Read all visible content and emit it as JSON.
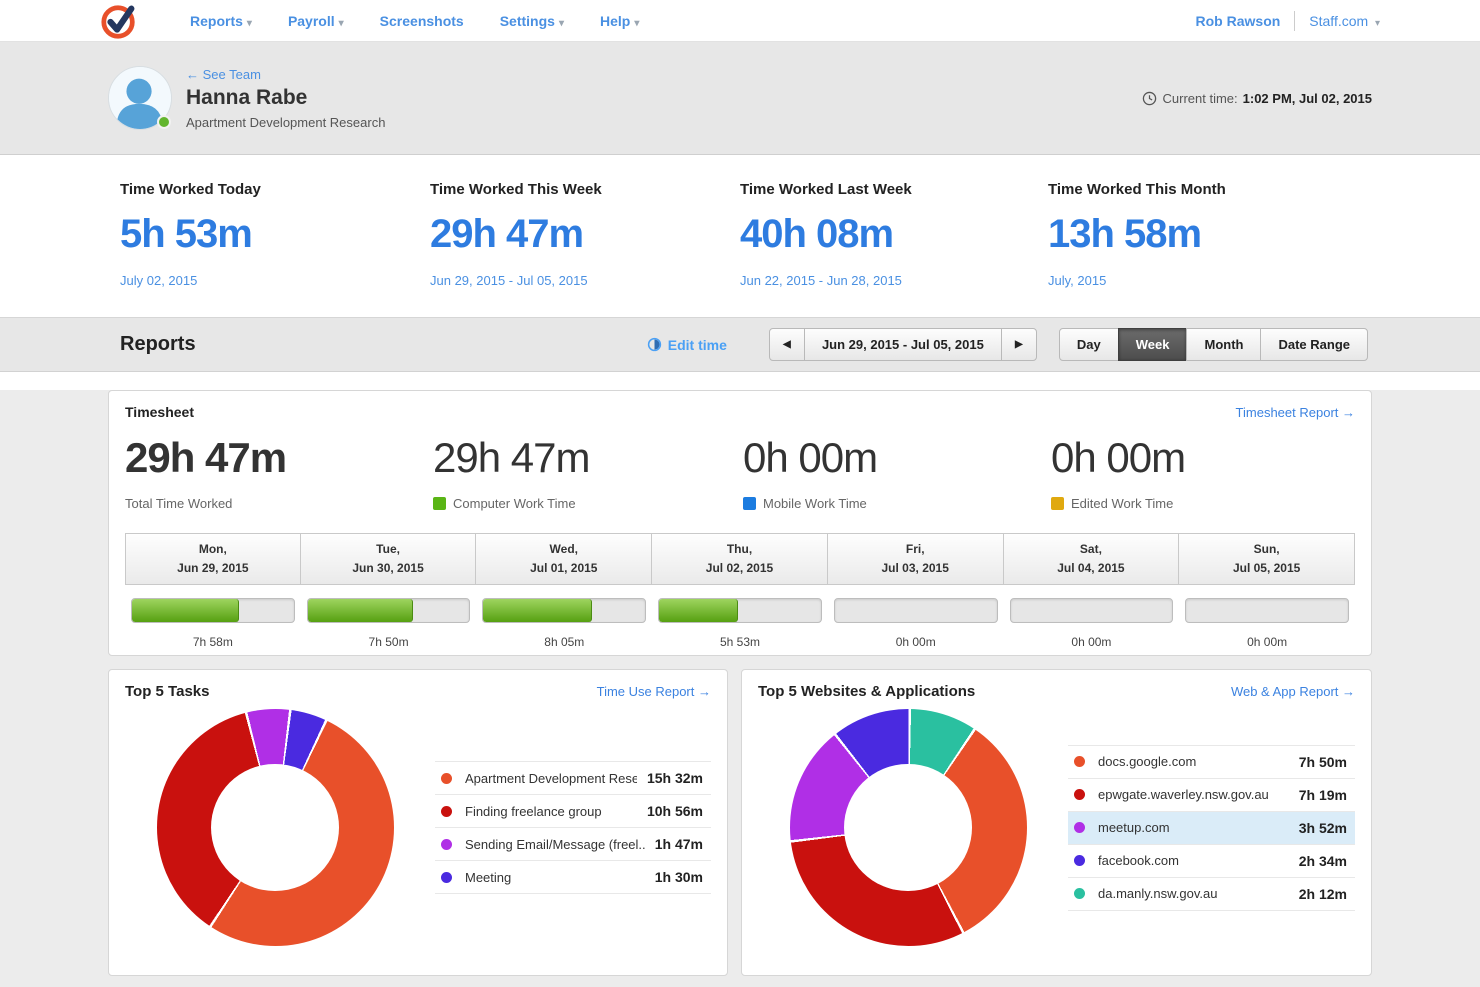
{
  "nav": {
    "menu": [
      {
        "label": "Reports"
      },
      {
        "label": "Payroll"
      },
      {
        "label": "Screenshots"
      },
      {
        "label": "Settings"
      },
      {
        "label": "Help"
      }
    ],
    "user": "Rob Rawson",
    "site": "Staff.com"
  },
  "profile": {
    "back_link": "← See Team",
    "name": "Hanna Rabe",
    "subtitle": "Apartment Development Research",
    "current_time_label": "Current time:",
    "current_time_value": "1:02 PM, Jul 02, 2015"
  },
  "stats": [
    {
      "title": "Time Worked Today",
      "value": "5h 53m",
      "period": "July 02, 2015"
    },
    {
      "title": "Time Worked This Week",
      "value": "29h 47m",
      "period": "Jun 29, 2015 - Jul 05, 2015"
    },
    {
      "title": "Time Worked Last Week",
      "value": "40h 08m",
      "period": "Jun 22, 2015 - Jun 28, 2015"
    },
    {
      "title": "Time Worked This Month",
      "value": "13h 58m",
      "period": "July, 2015"
    }
  ],
  "toolbar": {
    "title": "Reports",
    "edit_time": "Edit time",
    "date_range": "Jun 29, 2015 - Jul 05, 2015",
    "prev": "◀",
    "next": "▶",
    "views": [
      "Day",
      "Week",
      "Month",
      "Date Range"
    ],
    "active_view": "Week"
  },
  "timesheet": {
    "title": "Timesheet",
    "report_link": "Timesheet Report →",
    "summary": [
      {
        "value": "29h 47m",
        "label": "Total Time Worked",
        "swatch": "",
        "bold": true
      },
      {
        "value": "29h 47m",
        "label": "Computer Work Time",
        "swatch": "#5ab515",
        "bold": false
      },
      {
        "value": "0h 00m",
        "label": "Mobile Work Time",
        "swatch": "#1c7ce0",
        "bold": false
      },
      {
        "value": "0h 00m",
        "label": "Edited Work Time",
        "swatch": "#e0a90f",
        "bold": false
      }
    ],
    "scale_minutes": 720,
    "days": [
      {
        "dow": "Mon,",
        "date": "Jun 29, 2015",
        "minutes": 478,
        "label": "7h 58m"
      },
      {
        "dow": "Tue,",
        "date": "Jun 30, 2015",
        "minutes": 470,
        "label": "7h 50m"
      },
      {
        "dow": "Wed,",
        "date": "Jul 01, 2015",
        "minutes": 485,
        "label": "8h 05m"
      },
      {
        "dow": "Thu,",
        "date": "Jul 02, 2015",
        "minutes": 353,
        "label": "5h 53m"
      },
      {
        "dow": "Fri,",
        "date": "Jul 03, 2015",
        "minutes": 0,
        "label": "0h 00m"
      },
      {
        "dow": "Sat,",
        "date": "Jul 04, 2015",
        "minutes": 0,
        "label": "0h 00m"
      },
      {
        "dow": "Sun,",
        "date": "Jul 05, 2015",
        "minutes": 0,
        "label": "0h 00m"
      }
    ]
  },
  "tasks": {
    "title": "Top 5 Tasks",
    "report_link": "Time Use Report →",
    "chart": {
      "type": "donut",
      "start_deg": -15,
      "slices": [
        {
          "name": "Sending Email/Message",
          "color": "#b02fe6",
          "minutes": 107
        },
        {
          "name": "Meeting",
          "color": "#4a2ae0",
          "minutes": 90
        },
        {
          "name": "Apartment Development Research",
          "color": "#e8502a",
          "minutes": 932
        },
        {
          "name": "Finding freelance group",
          "color": "#c9110e",
          "minutes": 656
        }
      ]
    },
    "legend": [
      {
        "color": "#e8502a",
        "label": "Apartment Development Rese...",
        "time": "15h 32m",
        "highlight": false
      },
      {
        "color": "#c9110e",
        "label": "Finding freelance group",
        "time": "10h 56m",
        "highlight": false
      },
      {
        "color": "#b02fe6",
        "label": "Sending Email/Message (freel...",
        "time": "1h 47m",
        "highlight": false
      },
      {
        "color": "#4a2ae0",
        "label": "Meeting",
        "time": "1h 30m",
        "highlight": false
      }
    ]
  },
  "websites": {
    "title": "Top 5 Websites & Applications",
    "report_link": "Web & App Report →",
    "chart": {
      "type": "donut",
      "start_deg": 0,
      "slices": [
        {
          "name": "da.manly.nsw.gov.au",
          "color": "#2ac0a0",
          "minutes": 132
        },
        {
          "name": "docs.google.com",
          "color": "#e8502a",
          "minutes": 470
        },
        {
          "name": "epwgate.waverley.nsw.gov.au",
          "color": "#c9110e",
          "minutes": 439
        },
        {
          "name": "meetup.com",
          "color": "#b02fe6",
          "minutes": 232
        },
        {
          "name": "facebook.com",
          "color": "#4a2ae0",
          "minutes": 154
        }
      ]
    },
    "legend": [
      {
        "color": "#e8502a",
        "label": "docs.google.com",
        "time": "7h 50m",
        "highlight": false
      },
      {
        "color": "#c9110e",
        "label": "epwgate.waverley.nsw.gov.au",
        "time": "7h 19m",
        "highlight": false
      },
      {
        "color": "#b02fe6",
        "label": "meetup.com",
        "time": "3h 52m",
        "highlight": true
      },
      {
        "color": "#4a2ae0",
        "label": "facebook.com",
        "time": "2h 34m",
        "highlight": false
      },
      {
        "color": "#2ac0a0",
        "label": "da.manly.nsw.gov.au",
        "time": "2h 12m",
        "highlight": false
      }
    ]
  }
}
